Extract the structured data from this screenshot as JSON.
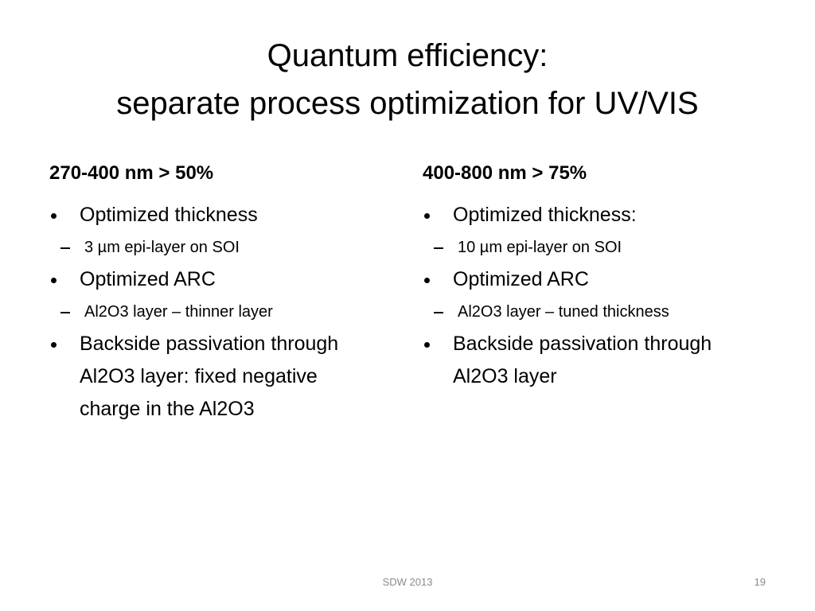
{
  "title": {
    "lines": [
      "Quantum efficiency:",
      "separate process optimization for UV/VIS"
    ]
  },
  "columns": [
    {
      "heading": "270-400 nm > 50%",
      "items": [
        {
          "text": "Optimized thickness",
          "sub": [
            "3 µm epi-layer on SOI"
          ]
        },
        {
          "text": "Optimized ARC",
          "sub": [
            "Al2O3 layer – thinner layer"
          ]
        },
        {
          "text": "Backside passivation through Al2O3 layer: fixed negative charge in the Al2O3"
        }
      ]
    },
    {
      "heading": "400-800 nm > 75%",
      "items": [
        {
          "text": "Optimized thickness:",
          "sub": [
            "10 µm epi-layer on SOI"
          ]
        },
        {
          "text": "Optimized ARC",
          "sub": [
            "Al2O3 layer – tuned thickness"
          ]
        },
        {
          "text": "Backside passivation through Al2O3 layer"
        }
      ]
    }
  ],
  "footer": {
    "text": "SDW 2013",
    "slide_number": 19
  }
}
